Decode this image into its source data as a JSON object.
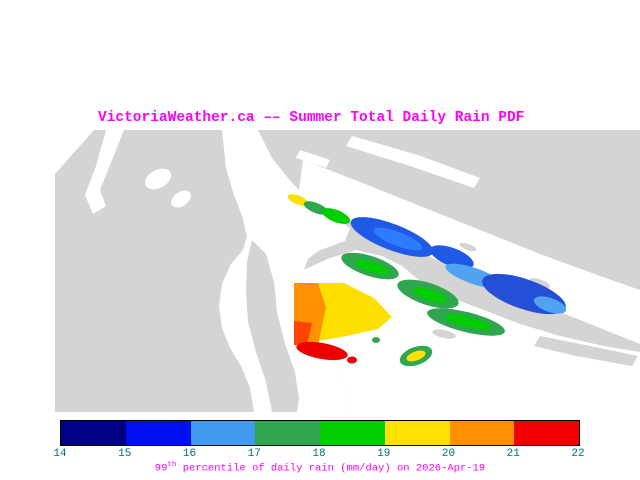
{
  "title": "VictoriaWeather.ca –– Summer Total Daily Rain PDF",
  "caption": {
    "num": "99",
    "sup": "th",
    "rest": " percentile of daily rain (mm/day) on 2026-Apr-19"
  },
  "colors": {
    "title_text": "#FF00FF",
    "caption_text": "#FF00FF",
    "tick_text": "#007070",
    "land": "#D4D4D4",
    "water": "#FFFFFF"
  },
  "chart_data": {
    "type": "heatmap",
    "title": "VictoriaWeather.ca –– Summer Total Daily Rain PDF",
    "variable": "99th percentile of daily rain",
    "units": "mm/day",
    "date": "2026-Apr-19",
    "legend_position": "bottom",
    "colorbar": {
      "min": 14,
      "max": 22,
      "ticks": [
        14,
        15,
        16,
        17,
        18,
        19,
        20,
        21,
        22
      ],
      "segment_colors": [
        "#000085",
        "#0010F0",
        "#3E9BF0",
        "#2FA64F",
        "#00CE00",
        "#FFE000",
        "#FF9000",
        "#F00000"
      ]
    },
    "regions": [
      {
        "area": "northwest channel tip",
        "value_mm_day": "19-20"
      },
      {
        "area": "northwest channel mid-section",
        "value_mm_day": "17-19"
      },
      {
        "area": "main channel toward southeast",
        "value_mm_day": "15-16"
      },
      {
        "area": "mid-channel light patch",
        "value_mm_day": "16-17"
      },
      {
        "area": "far southeast channel blob",
        "value_mm_day": "14-16"
      },
      {
        "area": "inner strait green patches",
        "value_mm_day": "17-19"
      },
      {
        "area": "central wedge west edge",
        "value_mm_day": "20-21"
      },
      {
        "area": "central wedge body",
        "value_mm_day": "19-20"
      },
      {
        "area": "south-central tongue and dots",
        "value_mm_day": "21-22"
      },
      {
        "area": "small southeast islet patch",
        "value_mm_day": "17-20"
      }
    ]
  }
}
